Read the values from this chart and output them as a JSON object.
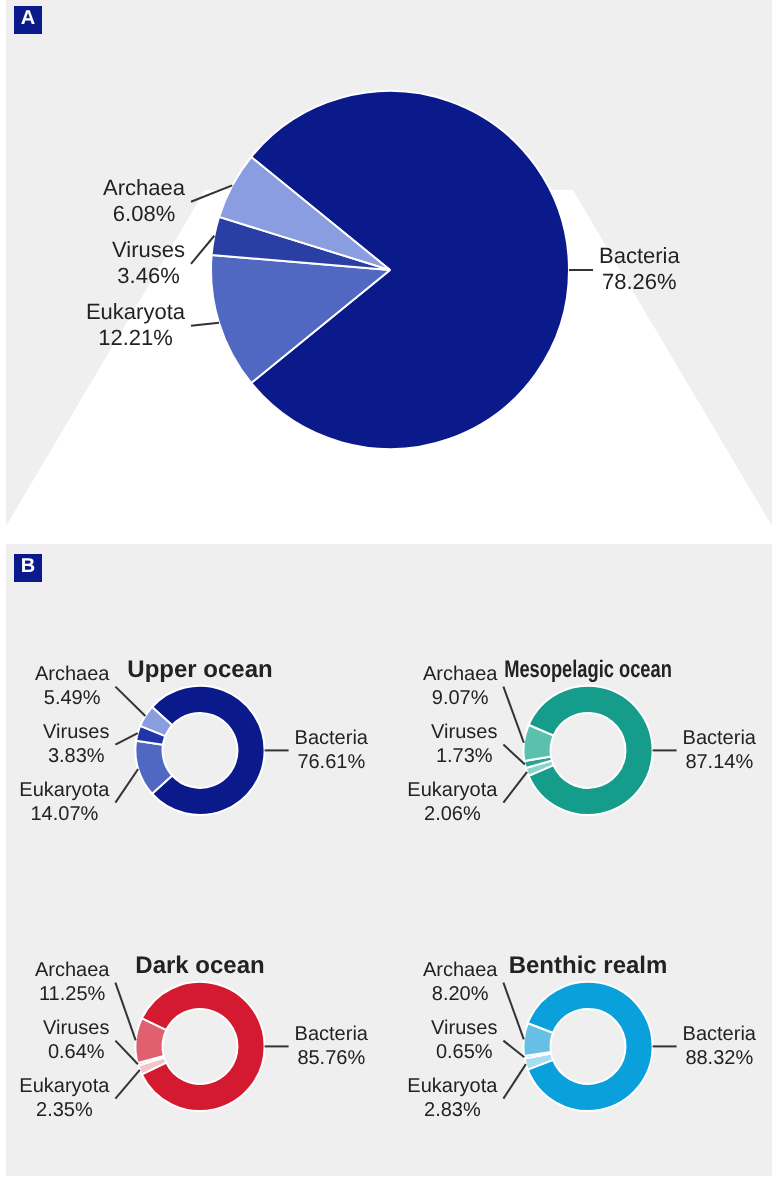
{
  "chart_data": [
    {
      "type": "pie",
      "annotations": [
        "A"
      ],
      "categories": [
        "Bacteria",
        "Eukaryota",
        "Viruses",
        "Archaea"
      ],
      "values": [
        78.26,
        12.21,
        3.46,
        6.08
      ],
      "value_labels": [
        "78.26%",
        "12.21%",
        "3.46%",
        "6.08%"
      ],
      "colors": [
        "#0a1a8a",
        "#5068c2",
        "#2a3fa4",
        "#8a9de0"
      ]
    },
    {
      "type": "donut",
      "title": "Upper ocean",
      "annotations": [
        "B"
      ],
      "categories": [
        "Bacteria",
        "Eukaryota",
        "Viruses",
        "Archaea"
      ],
      "values": [
        76.61,
        14.07,
        3.83,
        5.49
      ],
      "value_labels": [
        "76.61%",
        "14.07%",
        "3.83%",
        "5.49%"
      ],
      "colors": [
        "#0a1a8a",
        "#5068c2",
        "#2035a8",
        "#8a9de0"
      ]
    },
    {
      "type": "donut",
      "title": "Mesopelagic ocean",
      "categories": [
        "Bacteria",
        "Eukaryota",
        "Viruses",
        "Archaea"
      ],
      "values": [
        87.14,
        2.06,
        1.73,
        9.07
      ],
      "value_labels": [
        "87.14%",
        "2.06%",
        "1.73%",
        "9.07%"
      ],
      "colors": [
        "#169c8a",
        "#8dd4c8",
        "#2aa392",
        "#5cc0ae"
      ]
    },
    {
      "type": "donut",
      "title": "Dark ocean",
      "categories": [
        "Bacteria",
        "Eukaryota",
        "Viruses",
        "Archaea"
      ],
      "values": [
        85.76,
        2.35,
        0.64,
        11.25
      ],
      "value_labels": [
        "85.76%",
        "2.35%",
        "0.64%",
        "11.25%"
      ],
      "colors": [
        "#d41a30",
        "#f5c4ca",
        "#eea0aa",
        "#e06070"
      ]
    },
    {
      "type": "donut",
      "title": "Benthic realm",
      "categories": [
        "Bacteria",
        "Eukaryota",
        "Viruses",
        "Archaea"
      ],
      "values": [
        88.32,
        2.83,
        0.65,
        8.2
      ],
      "value_labels": [
        "88.32%",
        "2.83%",
        "0.65%",
        "8.20%"
      ],
      "colors": [
        "#0aa0dc",
        "#a8dcf0",
        "#2aa8df",
        "#66c0e6"
      ]
    }
  ]
}
